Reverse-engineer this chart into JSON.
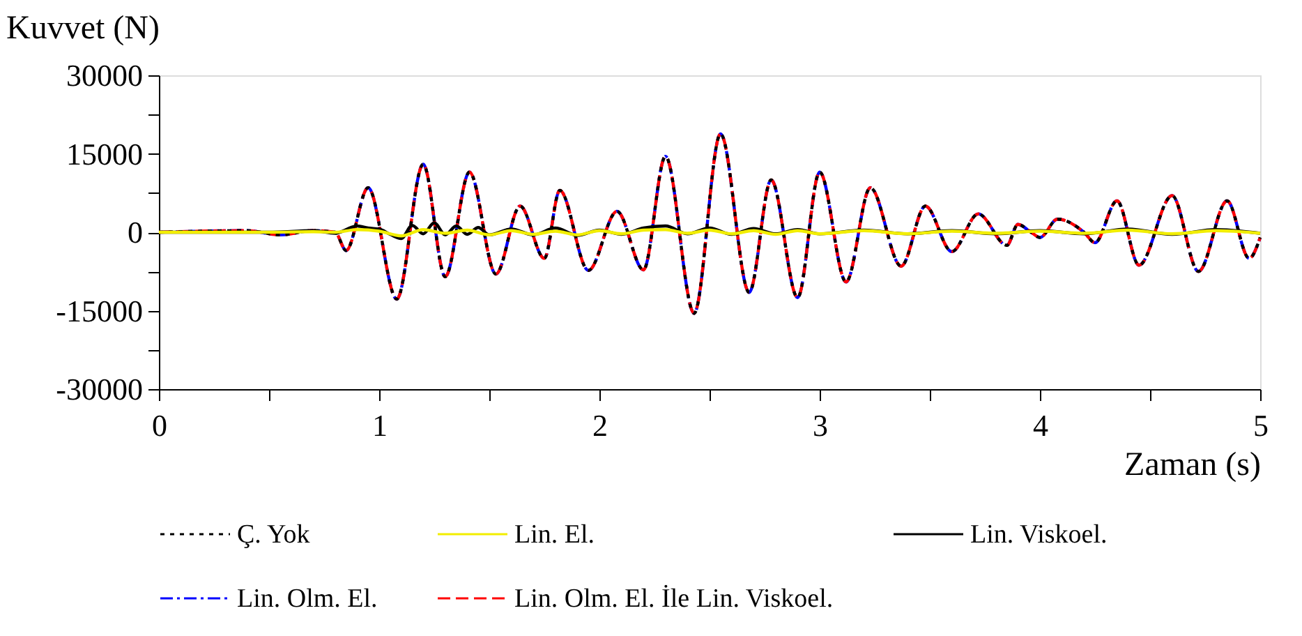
{
  "chart_data": {
    "type": "line",
    "ylabel": "Kuvvet (N)",
    "xlabel": "Zaman (s)",
    "xlim": [
      0,
      5
    ],
    "xticks": [
      0,
      {
        "value": 0.5,
        "label": null
      },
      1,
      {
        "value": 1.5,
        "label": null
      },
      2,
      {
        "value": 2.5,
        "label": null
      },
      3,
      {
        "value": 3.5,
        "label": null
      },
      4,
      {
        "value": 4.5,
        "label": null
      },
      5
    ],
    "ylim": [
      -30000,
      30000
    ],
    "yticks": [
      -30000,
      {
        "value": -22500,
        "label": null
      },
      -15000,
      {
        "value": -7500,
        "label": null
      },
      0,
      {
        "value": 7500,
        "label": null
      },
      15000,
      {
        "value": 22500,
        "label": null
      },
      30000
    ],
    "grid": false,
    "legend": "bottom",
    "marker": "none",
    "series": [
      {
        "name": "Lin. Olm. El.",
        "color": "#0000ff",
        "line_style": "dashdot",
        "x": [
          0,
          0.4,
          0.55,
          0.7,
          0.8,
          0.85,
          0.95,
          1.08,
          1.2,
          1.3,
          1.41,
          1.53,
          1.64,
          1.75,
          1.82,
          1.95,
          2.08,
          2.2,
          2.3,
          2.43,
          2.55,
          2.68,
          2.78,
          2.9,
          3.0,
          3.12,
          3.23,
          3.37,
          3.48,
          3.6,
          3.72,
          3.85,
          3.9,
          3.96,
          4.0,
          4.08,
          4.2,
          4.25,
          4.35,
          4.45,
          4.6,
          4.72,
          4.85,
          4.95,
          5.0
        ],
        "values": [
          0,
          300,
          -500,
          300,
          0,
          -3500,
          8500,
          -12800,
          13000,
          -8500,
          11500,
          -8000,
          5000,
          -5000,
          8000,
          -7300,
          4000,
          -7200,
          14500,
          -15500,
          18800,
          -11500,
          10000,
          -12500,
          11500,
          -9500,
          8500,
          -6500,
          5000,
          -3700,
          3500,
          -2500,
          1500,
          0,
          -1000,
          2500,
          0,
          -2000,
          6000,
          -6300,
          7000,
          -7500,
          6000,
          -5000,
          -1000
        ]
      },
      {
        "name": "Lin. Olm. El. İle Lin. Viskoel.",
        "color": "#ff0000",
        "line_style": "dashed",
        "x": [
          0,
          0.4,
          0.55,
          0.7,
          0.8,
          0.85,
          0.95,
          1.08,
          1.2,
          1.3,
          1.41,
          1.53,
          1.64,
          1.75,
          1.82,
          1.95,
          2.08,
          2.2,
          2.3,
          2.43,
          2.55,
          2.68,
          2.78,
          2.9,
          3.0,
          3.12,
          3.23,
          3.37,
          3.48,
          3.6,
          3.72,
          3.85,
          3.9,
          3.96,
          4.0,
          4.08,
          4.2,
          4.25,
          4.35,
          4.45,
          4.6,
          4.72,
          4.85,
          4.95,
          5.0
        ],
        "values": [
          0,
          300,
          -500,
          300,
          0,
          -3500,
          8500,
          -12800,
          13000,
          -8500,
          11500,
          -8000,
          5000,
          -5000,
          8000,
          -7300,
          4000,
          -7200,
          14500,
          -15500,
          18800,
          -11500,
          10000,
          -12500,
          11500,
          -9500,
          8500,
          -6500,
          5000,
          -3700,
          3500,
          -2500,
          1500,
          0,
          -1000,
          2500,
          0,
          -2000,
          6000,
          -6300,
          7000,
          -7500,
          6000,
          -5000,
          -1000
        ]
      },
      {
        "name": "Ç. Yok",
        "color": "#000000",
        "line_style": "dotted",
        "x": [
          0,
          0.4,
          0.55,
          0.7,
          0.8,
          0.85,
          0.95,
          1.08,
          1.2,
          1.3,
          1.41,
          1.53,
          1.64,
          1.75,
          1.82,
          1.95,
          2.08,
          2.2,
          2.3,
          2.43,
          2.55,
          2.68,
          2.78,
          2.9,
          3.0,
          3.12,
          3.23,
          3.37,
          3.48,
          3.6,
          3.72,
          3.85,
          3.9,
          3.96,
          4.0,
          4.08,
          4.2,
          4.25,
          4.35,
          4.45,
          4.6,
          4.72,
          4.85,
          4.95,
          5.0
        ],
        "values": [
          0,
          300,
          -500,
          300,
          0,
          -3500,
          8500,
          -12800,
          13000,
          -8500,
          11500,
          -8000,
          5000,
          -5000,
          8000,
          -7300,
          4000,
          -7200,
          14500,
          -15500,
          18800,
          -11500,
          10000,
          -12500,
          11500,
          -9500,
          8500,
          -6500,
          5000,
          -3700,
          3500,
          -2500,
          1500,
          0,
          -1000,
          2500,
          0,
          -2000,
          6000,
          -6300,
          7000,
          -7500,
          6000,
          -5000,
          -1000
        ]
      },
      {
        "name": "Lin. Viskoel.",
        "color": "#000000",
        "line_style": "solid",
        "x": [
          0,
          0.5,
          0.7,
          0.8,
          0.9,
          0.95,
          1.0,
          1.05,
          1.1,
          1.15,
          1.2,
          1.25,
          1.3,
          1.35,
          1.4,
          1.45,
          1.5,
          1.6,
          1.7,
          1.8,
          1.9,
          2.0,
          2.1,
          2.2,
          2.3,
          2.4,
          2.5,
          2.6,
          2.7,
          2.8,
          2.9,
          3.0,
          3.2,
          3.4,
          3.6,
          3.8,
          4.0,
          4.2,
          4.4,
          4.6,
          4.8,
          5.0
        ],
        "values": [
          0,
          0,
          300,
          -200,
          1200,
          800,
          600,
          -400,
          -1200,
          1300,
          -300,
          1800,
          -500,
          1200,
          -400,
          900,
          -500,
          600,
          -500,
          800,
          -600,
          400,
          -400,
          800,
          1200,
          -300,
          800,
          -400,
          700,
          -300,
          500,
          -300,
          400,
          -300,
          300,
          -300,
          300,
          -300,
          600,
          -400,
          500,
          -200
        ]
      },
      {
        "name": "Lin. El.",
        "color": "#f2ee00",
        "line_style": "solid",
        "x": [
          0,
          0.5,
          0.7,
          0.8,
          0.9,
          1.0,
          1.1,
          1.2,
          1.3,
          1.4,
          1.5,
          1.6,
          1.7,
          1.8,
          1.9,
          2.0,
          2.1,
          2.2,
          2.3,
          2.4,
          2.5,
          2.6,
          2.7,
          2.8,
          2.9,
          3.0,
          3.2,
          3.4,
          3.6,
          3.8,
          4.0,
          4.2,
          4.4,
          4.6,
          4.8,
          5.0
        ],
        "values": [
          0,
          0,
          100,
          0,
          500,
          200,
          -700,
          500,
          -200,
          400,
          -500,
          300,
          -400,
          200,
          -500,
          300,
          -300,
          400,
          500,
          -200,
          400,
          -300,
          300,
          -400,
          300,
          -300,
          300,
          -300,
          200,
          -200,
          200,
          -200,
          400,
          -300,
          300,
          -200
        ]
      }
    ]
  }
}
